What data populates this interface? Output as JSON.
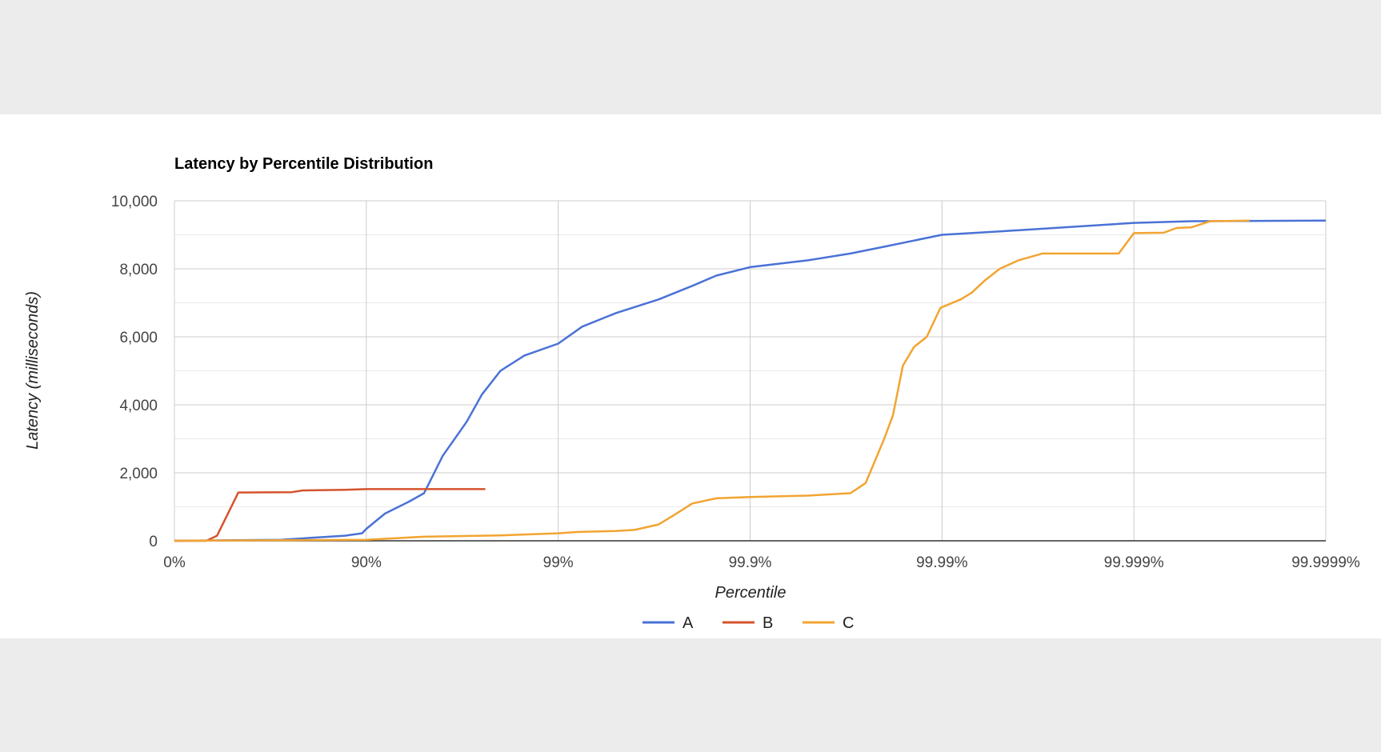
{
  "chart_data": {
    "type": "line",
    "title": "Latency by Percentile Distribution",
    "xlabel": "Percentile",
    "ylabel": "Latency (milliseconds)",
    "x_scale": "log-inverse-percentile",
    "x_ticks": [
      "0%",
      "90%",
      "99%",
      "99.9%",
      "99.99%",
      "99.999%",
      "99.9999%"
    ],
    "y_ticks": [
      "0",
      "2,000",
      "4,000",
      "6,000",
      "8,000",
      "10,000"
    ],
    "ylim": [
      0,
      10000
    ],
    "grid": true,
    "legend_position": "bottom",
    "series": [
      {
        "name": "A",
        "color": "#4a72d6",
        "points": [
          [
            0,
            0
          ],
          [
            50,
            30
          ],
          [
            80,
            150
          ],
          [
            88,
            220
          ],
          [
            90,
            350
          ],
          [
            92,
            800
          ],
          [
            94,
            1150
          ],
          [
            95,
            1400
          ],
          [
            96,
            2500
          ],
          [
            97,
            3500
          ],
          [
            97.5,
            4300
          ],
          [
            98,
            5000
          ],
          [
            98.5,
            5450
          ],
          [
            99,
            5800
          ],
          [
            99.25,
            6300
          ],
          [
            99.5,
            6700
          ],
          [
            99.7,
            7100
          ],
          [
            99.8,
            7500
          ],
          [
            99.85,
            7800
          ],
          [
            99.9,
            8050
          ],
          [
            99.95,
            8250
          ],
          [
            99.97,
            8450
          ],
          [
            99.98,
            8650
          ],
          [
            99.99,
            9000
          ],
          [
            99.995,
            9100
          ],
          [
            99.999,
            9350
          ],
          [
            99.9995,
            9400
          ],
          [
            99.9999,
            9420
          ]
        ]
      },
      {
        "name": "B",
        "color": "#d5532d",
        "points": [
          [
            0,
            0
          ],
          [
            15,
            0
          ],
          [
            20,
            150
          ],
          [
            30,
            1420
          ],
          [
            55,
            1430
          ],
          [
            60,
            1480
          ],
          [
            80,
            1500
          ],
          [
            90,
            1520
          ],
          [
            95,
            1520
          ],
          [
            97.6,
            1520
          ]
        ]
      },
      {
        "name": "C",
        "color": "#f2a431",
        "points": [
          [
            0,
            0
          ],
          [
            90,
            30
          ],
          [
            95,
            120
          ],
          [
            98,
            160
          ],
          [
            99,
            220
          ],
          [
            99.2,
            260
          ],
          [
            99.5,
            290
          ],
          [
            99.6,
            320
          ],
          [
            99.7,
            480
          ],
          [
            99.75,
            750
          ],
          [
            99.8,
            1100
          ],
          [
            99.85,
            1250
          ],
          [
            99.9,
            1290
          ],
          [
            99.95,
            1330
          ],
          [
            99.97,
            1400
          ],
          [
            99.975,
            1700
          ],
          [
            99.98,
            3000
          ],
          [
            99.982,
            3700
          ],
          [
            99.984,
            5150
          ],
          [
            99.986,
            5700
          ],
          [
            99.988,
            6000
          ],
          [
            99.9898,
            6850
          ],
          [
            99.99,
            6870
          ],
          [
            99.992,
            7100
          ],
          [
            99.993,
            7300
          ],
          [
            99.994,
            7650
          ],
          [
            99.995,
            8000
          ],
          [
            99.996,
            8250
          ],
          [
            99.997,
            8450
          ],
          [
            99.998,
            8450
          ],
          [
            99.9988,
            8450
          ],
          [
            99.999,
            9050
          ],
          [
            99.9993,
            9060
          ],
          [
            99.9994,
            9200
          ],
          [
            99.9995,
            9220
          ],
          [
            99.9996,
            9400
          ],
          [
            99.99975,
            9420
          ]
        ]
      }
    ]
  }
}
